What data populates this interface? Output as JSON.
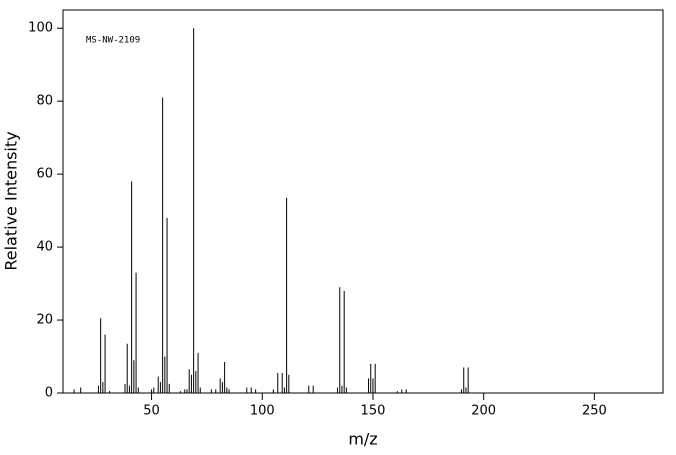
{
  "chart_data": {
    "type": "spectrum",
    "annotation": "MS-NW-2109",
    "xlabel": "m/z",
    "ylabel": "Relative Intensity",
    "x": [
      15,
      18,
      26,
      27,
      28,
      29,
      31,
      38,
      39,
      40,
      41,
      42,
      43,
      44,
      50,
      51,
      53,
      54,
      55,
      56,
      57,
      58,
      63,
      65,
      66,
      67,
      68,
      69,
      70,
      71,
      72,
      77,
      79,
      81,
      82,
      83,
      84,
      85,
      93,
      95,
      97,
      105,
      107,
      109,
      110,
      111,
      112,
      121,
      123,
      134,
      135,
      136,
      137,
      138,
      148,
      149,
      150,
      151,
      161,
      163,
      165,
      190,
      191,
      192,
      193
    ],
    "values": [
      1,
      1.5,
      2,
      20.5,
      3,
      16,
      0.5,
      2.5,
      13.5,
      2,
      58,
      9,
      33,
      1.5,
      1,
      1.5,
      4.5,
      3,
      81,
      10,
      48,
      2.5,
      0.5,
      1,
      1,
      6.5,
      5,
      100,
      6,
      11,
      1.5,
      1,
      1,
      4,
      3,
      8.5,
      1.5,
      1,
      1.5,
      1.5,
      1,
      1,
      5.5,
      5.5,
      1.5,
      53.5,
      5,
      2,
      2,
      1.5,
      29,
      2,
      28,
      1.5,
      4,
      8,
      4,
      8,
      0.5,
      1,
      1,
      1,
      7,
      1.5,
      7
    ],
    "color": "#000000",
    "xlim": [
      10,
      281
    ],
    "xticks": [
      50,
      100,
      150,
      200,
      250
    ],
    "ylim": [
      0,
      105
    ],
    "yticks": [
      0,
      20,
      40,
      60,
      80,
      100
    ]
  }
}
